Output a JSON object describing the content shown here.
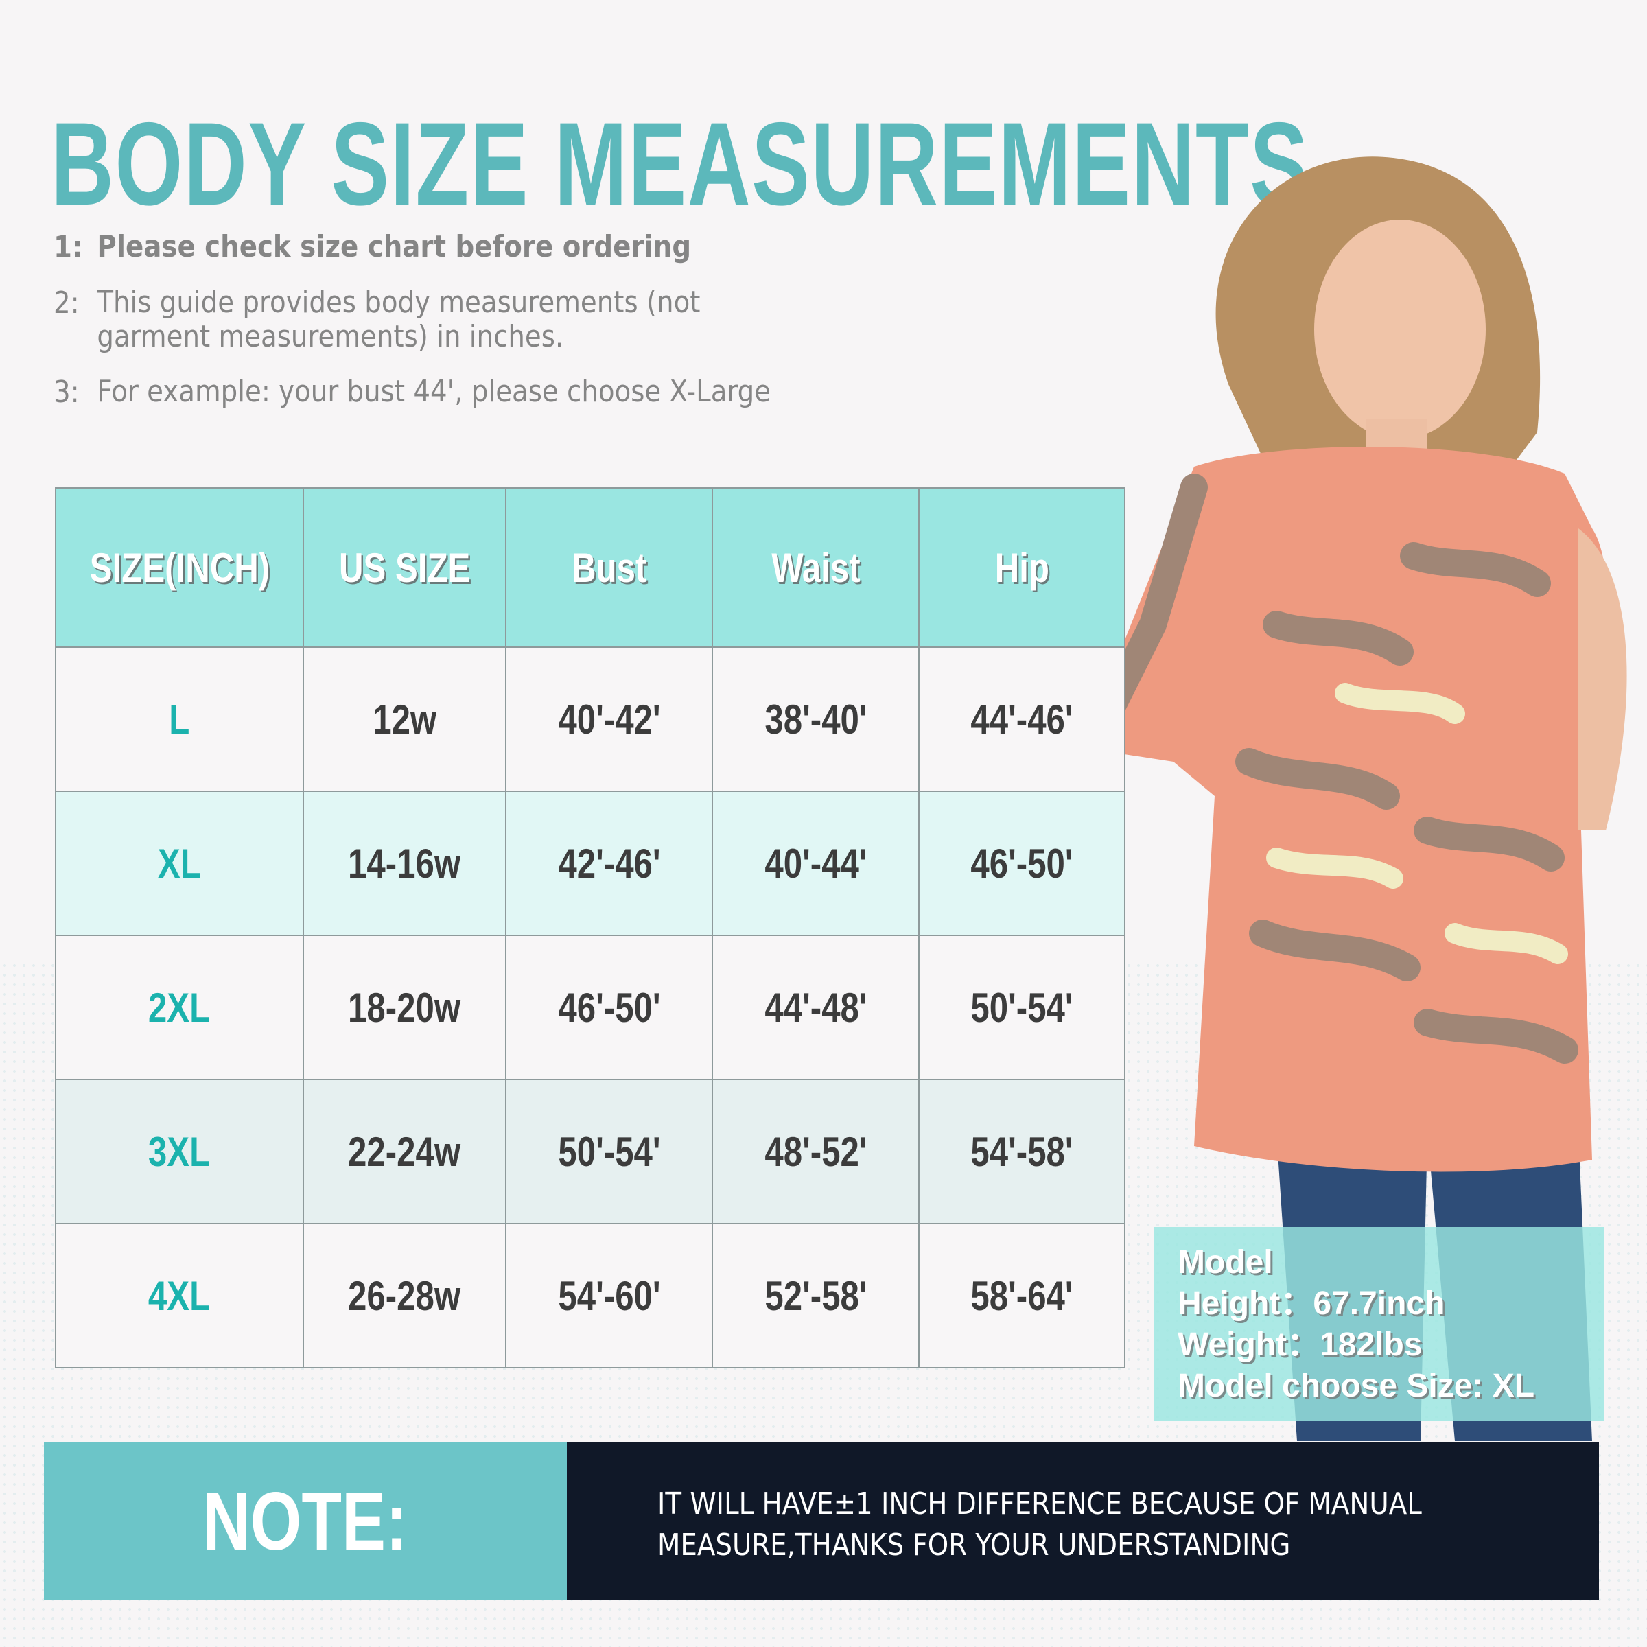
{
  "title": "BODY SIZE MEASUREMENTS",
  "notes": [
    {
      "num": "1:",
      "text": "Please check size chart before ordering"
    },
    {
      "num": "2:",
      "text": "This guide provides body measurements (not garment measurements) in inches."
    },
    {
      "num": "3:",
      "text": "For example: your bust 44', please choose X-Large"
    }
  ],
  "table": {
    "headers": [
      "SIZE(INCH)",
      "US SIZE",
      "Bust",
      "Waist",
      "Hip"
    ],
    "rows": [
      [
        "L",
        "12w",
        "40'-42'",
        "38'-40'",
        "44'-46'"
      ],
      [
        "XL",
        "14-16w",
        "42'-46'",
        "40'-44'",
        "46'-50'"
      ],
      [
        "2XL",
        "18-20w",
        "46'-50'",
        "44'-48'",
        "50'-54'"
      ],
      [
        "3XL",
        "22-24w",
        "50'-54'",
        "48'-52'",
        "54'-58'"
      ],
      [
        "4XL",
        "26-28w",
        "54'-60'",
        "52'-58'",
        "58'-64'"
      ]
    ]
  },
  "model": {
    "label": "Model",
    "height": "Height：67.7inch",
    "weight": "Weight：182lbs",
    "size": "Model choose Size: XL"
  },
  "note": {
    "label": "NOTE:",
    "line1": "IT WILL HAVE±1 INCH DIFFERENCE BECAUSE OF MANUAL",
    "line2": "MEASURE,THANKS FOR YOUR UNDERSTANDING"
  },
  "colors": {
    "accent": "#5cb8bb",
    "header": "#9ae6e1",
    "size_label": "#1bb2ad",
    "note_dark": "#101828"
  }
}
